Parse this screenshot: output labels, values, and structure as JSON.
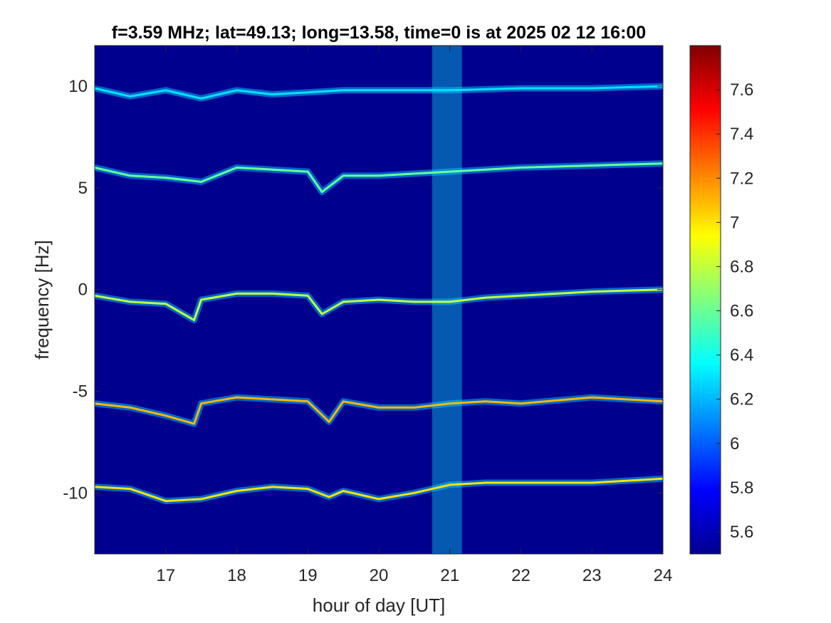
{
  "chart_data": {
    "type": "heatmap",
    "title": "f=3.59 MHz;  lat=49.13; long=13.58, time=0 is at 2025 02 12 16:00",
    "xlabel": "hour of day [UT]",
    "ylabel": "frequency [Hz]",
    "xlim": [
      16,
      24
    ],
    "ylim": [
      -13,
      12
    ],
    "x_ticks": [
      17,
      18,
      19,
      20,
      21,
      22,
      23,
      24
    ],
    "y_ticks": [
      10,
      5,
      0,
      -5,
      -10
    ],
    "background_level": 5.5,
    "colorbar": {
      "clim": [
        5.5,
        7.8
      ],
      "ticks": [
        5.6,
        5.8,
        6,
        6.2,
        6.4,
        6.6,
        6.8,
        7,
        7.2,
        7.4,
        7.6
      ],
      "colormap": "jet"
    },
    "series": [
      {
        "center_hz": 10,
        "x": [
          16,
          16.5,
          17,
          17.5,
          18,
          18.5,
          19,
          19.5,
          20,
          21,
          22,
          23,
          24
        ],
        "y": [
          9.9,
          9.5,
          9.8,
          9.4,
          9.8,
          9.6,
          9.7,
          9.8,
          9.8,
          9.8,
          9.9,
          9.9,
          10.0
        ],
        "level": 6.3
      },
      {
        "center_hz": 6,
        "x": [
          16,
          16.5,
          17,
          17.5,
          18,
          18.5,
          19,
          19.2,
          19.5,
          20,
          20.5,
          21,
          21.5,
          22,
          23,
          24
        ],
        "y": [
          6.0,
          5.6,
          5.5,
          5.3,
          6.0,
          5.9,
          5.8,
          4.8,
          5.6,
          5.6,
          5.7,
          5.8,
          5.9,
          6.0,
          6.1,
          6.2
        ],
        "level": 6.6
      },
      {
        "center_hz": 0,
        "x": [
          16,
          16.5,
          17,
          17.4,
          17.5,
          18,
          18.5,
          19,
          19.2,
          19.5,
          20,
          20.5,
          21,
          21.5,
          22,
          23,
          24
        ],
        "y": [
          -0.3,
          -0.6,
          -0.7,
          -1.5,
          -0.5,
          -0.2,
          -0.2,
          -0.3,
          -1.2,
          -0.6,
          -0.5,
          -0.6,
          -0.6,
          -0.4,
          -0.3,
          -0.1,
          0.0
        ],
        "level": 6.8
      },
      {
        "center_hz": -5,
        "x": [
          16,
          16.5,
          17,
          17.4,
          17.5,
          18,
          18.5,
          19,
          19.3,
          19.5,
          20,
          20.5,
          21,
          21.5,
          22,
          23,
          24
        ],
        "y": [
          -5.6,
          -5.8,
          -6.2,
          -6.6,
          -5.6,
          -5.3,
          -5.4,
          -5.5,
          -6.5,
          -5.5,
          -5.8,
          -5.8,
          -5.6,
          -5.5,
          -5.6,
          -5.3,
          -5.5
        ],
        "level": 7.1
      },
      {
        "center_hz": -10,
        "x": [
          16,
          16.5,
          17,
          17.5,
          18,
          18.5,
          19,
          19.3,
          19.5,
          20,
          20.5,
          21,
          21.5,
          22,
          23,
          24
        ],
        "y": [
          -9.7,
          -9.8,
          -10.4,
          -10.3,
          -9.9,
          -9.7,
          -9.8,
          -10.2,
          -9.9,
          -10.3,
          -10.0,
          -9.6,
          -9.5,
          -9.5,
          -9.5,
          -9.3
        ],
        "level": 7.0
      }
    ],
    "interference_bands": [
      {
        "x_start": 20.75,
        "x_end": 21.17,
        "level": 6.4
      }
    ]
  }
}
